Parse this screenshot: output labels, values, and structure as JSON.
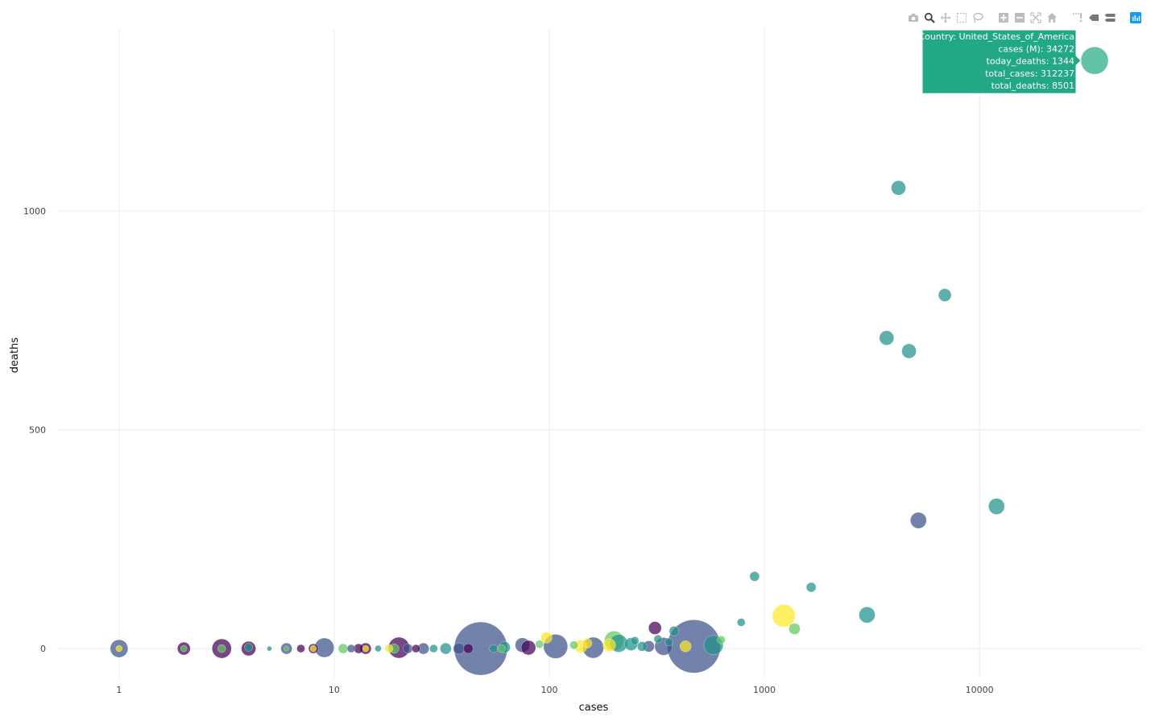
{
  "modebar": {
    "buttons": [
      {
        "name": "camera-icon",
        "group": 0,
        "active": false
      },
      {
        "name": "zoom-icon",
        "group": 0,
        "active": true
      },
      {
        "name": "pan-icon",
        "group": 0,
        "active": false
      },
      {
        "name": "box-select-icon",
        "group": 0,
        "active": false
      },
      {
        "name": "lasso-select-icon",
        "group": 0,
        "active": false
      },
      {
        "name": "zoom-in-icon",
        "group": 1,
        "active": false
      },
      {
        "name": "zoom-out-icon",
        "group": 1,
        "active": false
      },
      {
        "name": "autoscale-icon",
        "group": 1,
        "active": false
      },
      {
        "name": "reset-axes-icon",
        "group": 1,
        "active": false
      },
      {
        "name": "toggle-spike-lines-icon",
        "group": 2,
        "active": false
      },
      {
        "name": "show-closest-hover-icon",
        "group": 2,
        "active": false
      },
      {
        "name": "compare-hover-icon",
        "group": 2,
        "active": false
      },
      {
        "name": "plotly-logo-icon",
        "group": 3,
        "active": false
      }
    ],
    "colors": {
      "icon": "#bdbdbd",
      "active": "#444444",
      "dark": "#777777",
      "logo": "#119dff"
    }
  },
  "chart_data": {
    "type": "scatter",
    "xlabel": "cases",
    "ylabel": "deaths",
    "xscale": "log",
    "xlim": [
      0.52,
      57000
    ],
    "ylim": [
      -68,
      1418
    ],
    "xticks": [
      {
        "v": 1,
        "label": "1"
      },
      {
        "v": 10,
        "label": "10"
      },
      {
        "v": 100,
        "label": "100"
      },
      {
        "v": 1000,
        "label": "1000"
      },
      {
        "v": 10000,
        "label": "10000"
      }
    ],
    "yticks": [
      {
        "v": 0,
        "label": "0"
      },
      {
        "v": 500,
        "label": "500"
      },
      {
        "v": 1000,
        "label": "1000"
      }
    ],
    "grid": true,
    "colors": {
      "purple": "#440154",
      "indigo": "#3b528b",
      "teal": "#21918c",
      "green": "#5ec962",
      "yellow": "#fde725",
      "hover": "#22a884"
    },
    "points": [
      {
        "x": 33,
        "y": 0,
        "r": 7,
        "c": "teal"
      },
      {
        "x": 48,
        "y": 0,
        "r": 33,
        "c": "indigo"
      },
      {
        "x": 470,
        "y": 5,
        "r": 33,
        "c": "indigo"
      },
      {
        "x": 9,
        "y": 2,
        "r": 12,
        "c": "indigo"
      },
      {
        "x": 20,
        "y": 2,
        "r": 13,
        "c": "purple"
      },
      {
        "x": 107,
        "y": 5,
        "r": 15,
        "c": "indigo"
      },
      {
        "x": 160,
        "y": 2,
        "r": 13,
        "c": "indigo"
      },
      {
        "x": 3,
        "y": 0,
        "r": 12,
        "c": "purple"
      },
      {
        "x": 3,
        "y": 0,
        "r": 5,
        "c": "green"
      },
      {
        "x": 1,
        "y": 0,
        "r": 11,
        "c": "indigo"
      },
      {
        "x": 1,
        "y": 0,
        "r": 4,
        "c": "yellow"
      },
      {
        "x": 2,
        "y": 0,
        "r": 8,
        "c": "purple"
      },
      {
        "x": 2,
        "y": 0,
        "r": 4,
        "c": "green"
      },
      {
        "x": 4,
        "y": 0,
        "r": 9,
        "c": "purple"
      },
      {
        "x": 4,
        "y": 3,
        "r": 5,
        "c": "teal"
      },
      {
        "x": 5,
        "y": 0,
        "r": 3,
        "c": "teal"
      },
      {
        "x": 6,
        "y": 0,
        "r": 7,
        "c": "indigo"
      },
      {
        "x": 6,
        "y": 0,
        "r": 3,
        "c": "green"
      },
      {
        "x": 7,
        "y": 0,
        "r": 5,
        "c": "purple"
      },
      {
        "x": 8,
        "y": 0,
        "r": 6,
        "c": "purple"
      },
      {
        "x": 8,
        "y": 0,
        "r": 4,
        "c": "yellow"
      },
      {
        "x": 11,
        "y": 0,
        "r": 6,
        "c": "green"
      },
      {
        "x": 12,
        "y": 0,
        "r": 5,
        "c": "indigo"
      },
      {
        "x": 13,
        "y": 0,
        "r": 6,
        "c": "purple"
      },
      {
        "x": 14,
        "y": 0,
        "r": 7,
        "c": "purple"
      },
      {
        "x": 14,
        "y": 0,
        "r": 4,
        "c": "yellow"
      },
      {
        "x": 16,
        "y": 0,
        "r": 4,
        "c": "teal"
      },
      {
        "x": 18,
        "y": 0,
        "r": 5,
        "c": "yellow"
      },
      {
        "x": 19,
        "y": 0,
        "r": 6,
        "c": "green"
      },
      {
        "x": 22,
        "y": 0,
        "r": 6,
        "c": "indigo"
      },
      {
        "x": 24,
        "y": 0,
        "r": 5,
        "c": "purple"
      },
      {
        "x": 26,
        "y": 0,
        "r": 7,
        "c": "indigo"
      },
      {
        "x": 29,
        "y": 0,
        "r": 5,
        "c": "teal"
      },
      {
        "x": 38,
        "y": 0,
        "r": 7,
        "c": "indigo"
      },
      {
        "x": 42,
        "y": 0,
        "r": 6,
        "c": "purple"
      },
      {
        "x": 55,
        "y": 0,
        "r": 5,
        "c": "teal"
      },
      {
        "x": 60,
        "y": 0,
        "r": 5,
        "c": "green"
      },
      {
        "x": 62,
        "y": 3,
        "r": 7,
        "c": "teal"
      },
      {
        "x": 75,
        "y": 8,
        "r": 9,
        "c": "indigo"
      },
      {
        "x": 80,
        "y": 2,
        "r": 9,
        "c": "purple"
      },
      {
        "x": 90,
        "y": 10,
        "r": 5,
        "c": "green"
      },
      {
        "x": 97,
        "y": 25,
        "r": 7,
        "c": "yellow"
      },
      {
        "x": 130,
        "y": 8,
        "r": 5,
        "c": "green"
      },
      {
        "x": 140,
        "y": 5,
        "r": 8,
        "c": "yellow"
      },
      {
        "x": 150,
        "y": 12,
        "r": 6,
        "c": "yellow"
      },
      {
        "x": 190,
        "y": 8,
        "r": 8,
        "c": "yellow"
      },
      {
        "x": 200,
        "y": 18,
        "r": 12,
        "c": "green"
      },
      {
        "x": 210,
        "y": 12,
        "r": 11,
        "c": "teal"
      },
      {
        "x": 240,
        "y": 10,
        "r": 8,
        "c": "teal"
      },
      {
        "x": 250,
        "y": 18,
        "r": 5,
        "c": "teal"
      },
      {
        "x": 270,
        "y": 5,
        "r": 6,
        "c": "teal"
      },
      {
        "x": 290,
        "y": 5,
        "r": 7,
        "c": "indigo"
      },
      {
        "x": 310,
        "y": 47,
        "r": 8,
        "c": "purple"
      },
      {
        "x": 320,
        "y": 22,
        "r": 5,
        "c": "teal"
      },
      {
        "x": 340,
        "y": 5,
        "r": 11,
        "c": "indigo"
      },
      {
        "x": 360,
        "y": 15,
        "r": 5,
        "c": "teal"
      },
      {
        "x": 380,
        "y": 40,
        "r": 6,
        "c": "teal"
      },
      {
        "x": 430,
        "y": 5,
        "r": 7,
        "c": "yellow"
      },
      {
        "x": 580,
        "y": 8,
        "r": 12,
        "c": "teal"
      },
      {
        "x": 630,
        "y": 20,
        "r": 5,
        "c": "green"
      },
      {
        "x": 780,
        "y": 60,
        "r": 5,
        "c": "teal"
      },
      {
        "x": 900,
        "y": 165,
        "r": 6,
        "c": "teal"
      },
      {
        "x": 1230,
        "y": 75,
        "r": 14,
        "c": "yellow"
      },
      {
        "x": 1380,
        "y": 45,
        "r": 7,
        "c": "green"
      },
      {
        "x": 1650,
        "y": 140,
        "r": 6,
        "c": "teal"
      },
      {
        "x": 3000,
        "y": 77,
        "r": 10,
        "c": "teal"
      },
      {
        "x": 3700,
        "y": 710,
        "r": 9,
        "c": "teal"
      },
      {
        "x": 4200,
        "y": 1053,
        "r": 9,
        "c": "teal"
      },
      {
        "x": 4700,
        "y": 680,
        "r": 9,
        "c": "teal"
      },
      {
        "x": 5200,
        "y": 293,
        "r": 10,
        "c": "indigo"
      },
      {
        "x": 6900,
        "y": 808,
        "r": 8,
        "c": "teal"
      },
      {
        "x": 12000,
        "y": 325,
        "r": 10,
        "c": "teal"
      },
      {
        "x": 34272,
        "y": 1344,
        "r": 17,
        "c": "hover"
      }
    ],
    "hover": {
      "x": 34272,
      "y": 1344,
      "lines": [
        "Country: United_States_of_America",
        "cases (M): 34272",
        "today_deaths: 1344",
        "total_cases: 312237",
        "total_deaths: 8501"
      ]
    }
  }
}
